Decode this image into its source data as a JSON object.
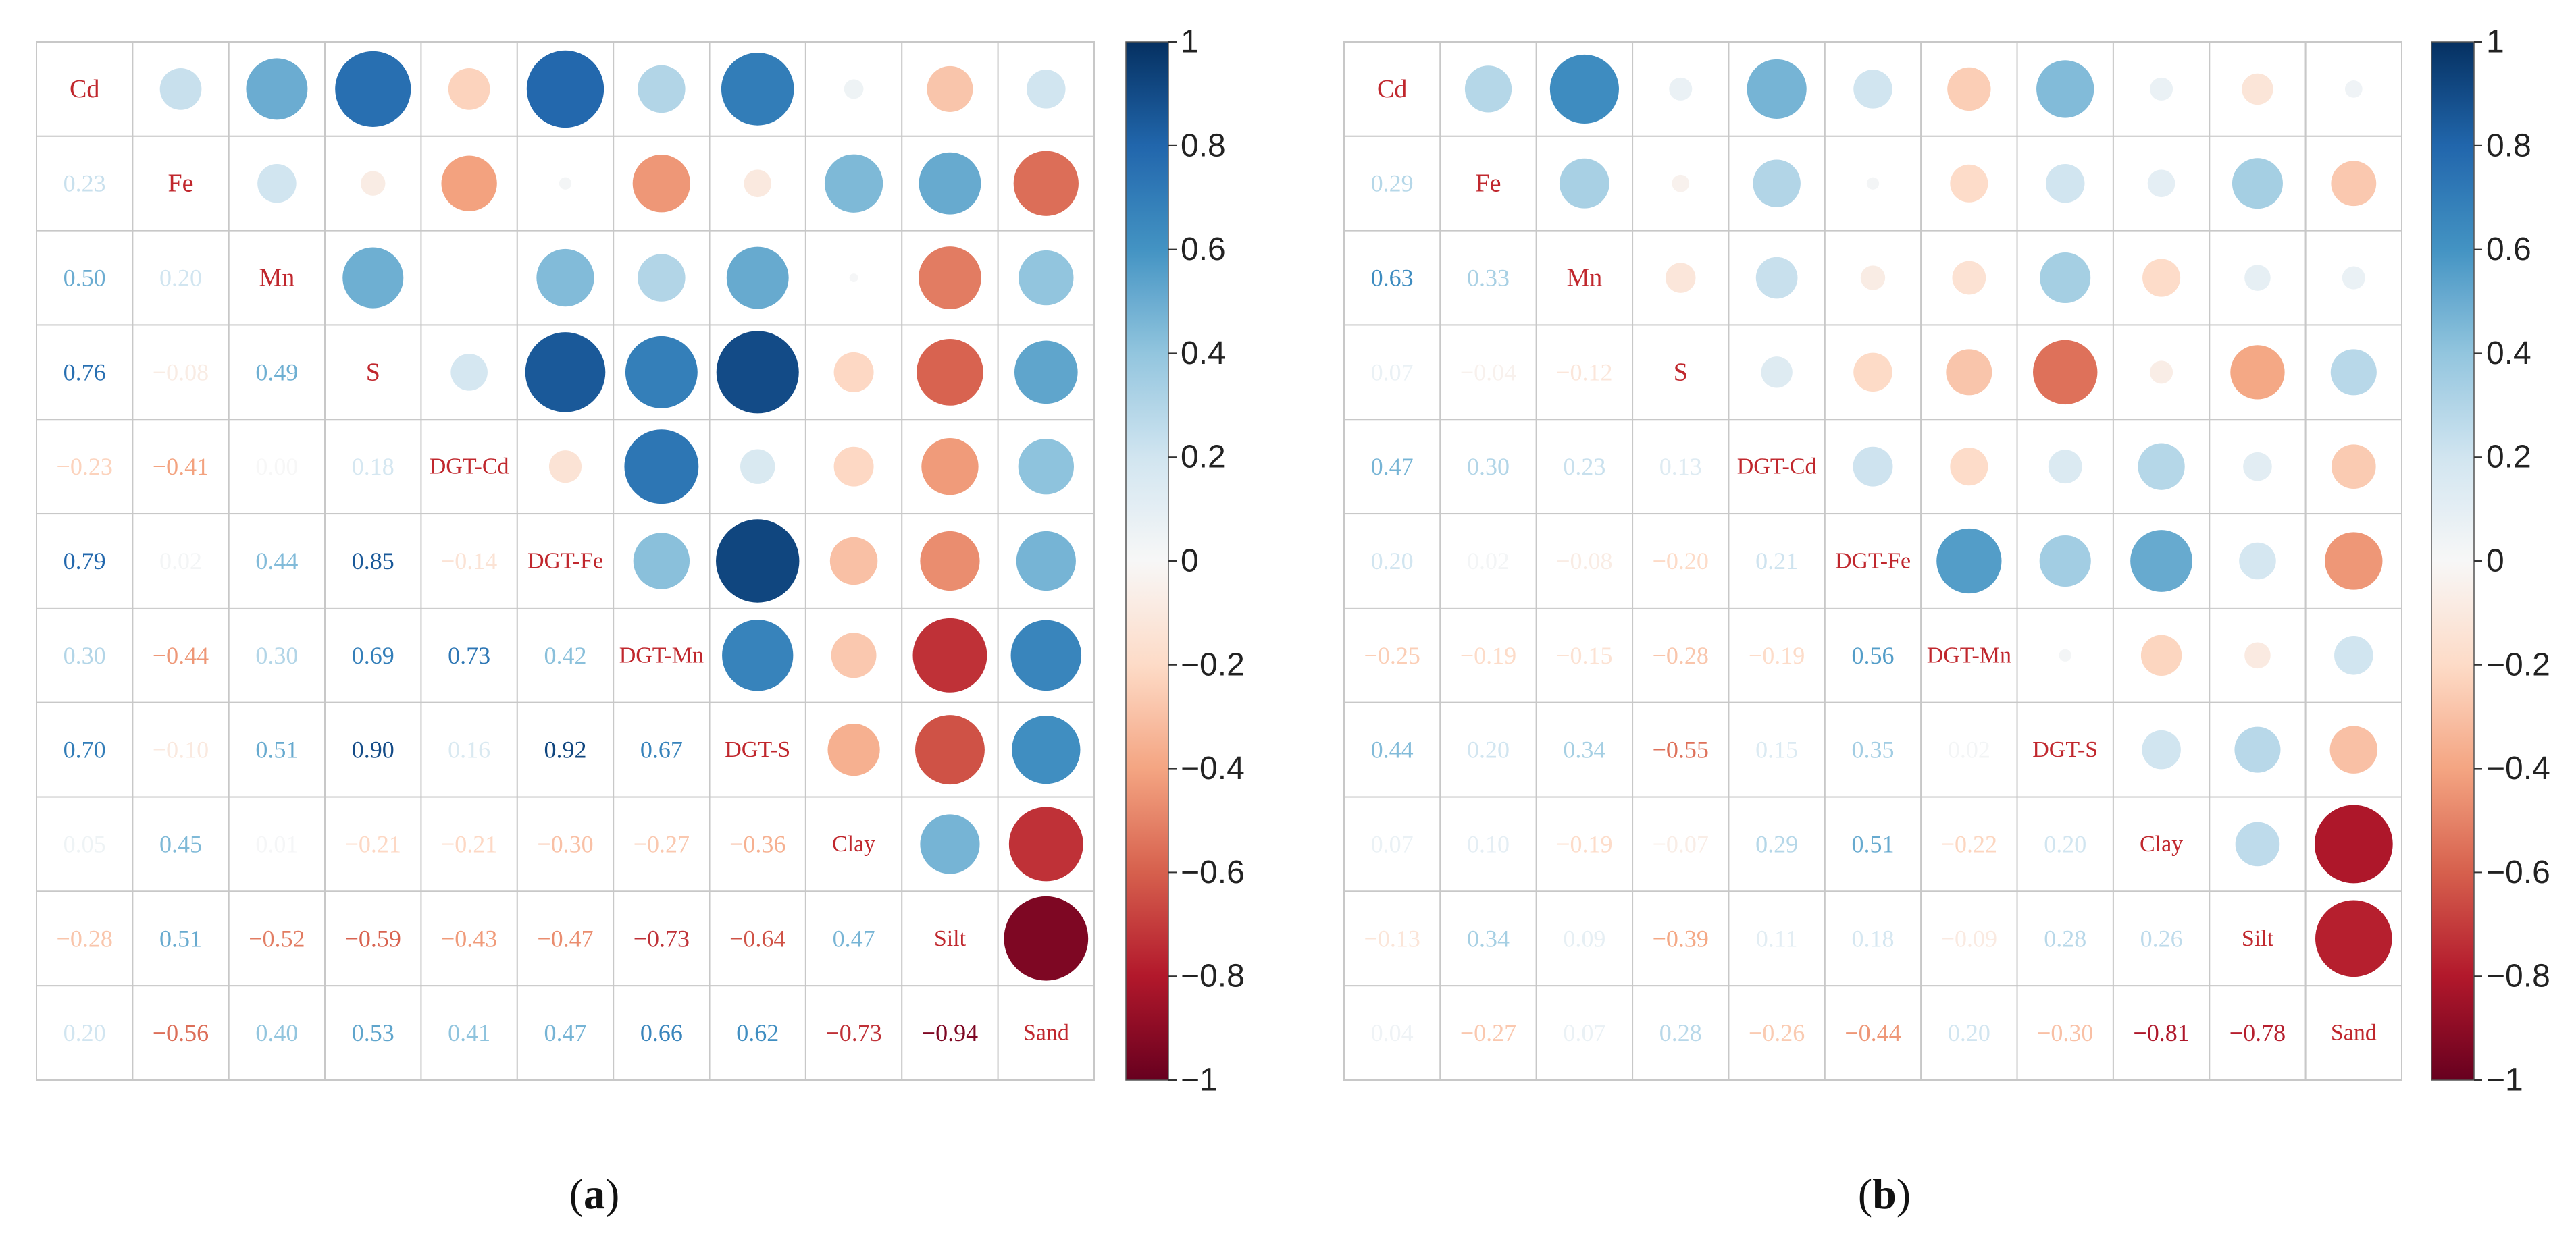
{
  "chart_data": [
    {
      "type": "heatmap",
      "subtype": "correlogram-circles-upper-numbers-lower",
      "panel_label": "(a)",
      "variables": [
        "Cd",
        "Fe",
        "Mn",
        "S",
        "DGT-Cd",
        "DGT-Fe",
        "DGT-Mn",
        "DGT-S",
        "Clay",
        "Silt",
        "Sand"
      ],
      "lower_labels": [
        [],
        [
          "0.23"
        ],
        [
          "0.50",
          "0.20"
        ],
        [
          "0.76",
          "−0.08",
          "0.49"
        ],
        [
          "−0.23",
          "−0.41",
          "0.00",
          "0.18"
        ],
        [
          "0.79",
          "0.02",
          "0.44",
          "0.85",
          "−0.14"
        ],
        [
          "0.30",
          "−0.44",
          "0.30",
          "0.69",
          "0.73",
          "0.42"
        ],
        [
          "0.70",
          "−0.10",
          "0.51",
          "0.90",
          "0.16",
          "0.92",
          "0.67"
        ],
        [
          "0.05",
          "0.45",
          "0.01",
          "−0.21",
          "−0.21",
          "−0.30",
          "−0.27",
          "−0.36"
        ],
        [
          "−0.28",
          "0.51",
          "−0.52",
          "−0.59",
          "−0.43",
          "−0.47",
          "−0.73",
          "−0.64",
          "0.47"
        ],
        [
          "0.20",
          "−0.56",
          "0.40",
          "0.53",
          "0.41",
          "0.47",
          "0.66",
          "0.62",
          "−0.73",
          "−0.94"
        ]
      ],
      "matrix": [
        [
          1,
          0.23,
          0.5,
          0.76,
          -0.23,
          0.79,
          0.3,
          0.7,
          0.05,
          -0.28,
          0.2
        ],
        [
          0.23,
          1,
          0.2,
          -0.08,
          -0.41,
          0.02,
          -0.44,
          -0.1,
          0.45,
          0.51,
          -0.56
        ],
        [
          0.5,
          0.2,
          1,
          0.49,
          0.0,
          0.44,
          0.3,
          0.51,
          0.01,
          -0.52,
          0.4
        ],
        [
          0.76,
          -0.08,
          0.49,
          1,
          0.18,
          0.85,
          0.69,
          0.9,
          -0.21,
          -0.59,
          0.53
        ],
        [
          -0.23,
          -0.41,
          0.0,
          0.18,
          1,
          -0.14,
          0.73,
          0.16,
          -0.21,
          -0.43,
          0.41
        ],
        [
          0.79,
          0.02,
          0.44,
          0.85,
          -0.14,
          1,
          0.42,
          0.92,
          -0.3,
          -0.47,
          0.47
        ],
        [
          0.3,
          -0.44,
          0.3,
          0.69,
          0.73,
          0.42,
          1,
          0.67,
          -0.27,
          -0.73,
          0.66
        ],
        [
          0.7,
          -0.1,
          0.51,
          0.9,
          0.16,
          0.92,
          0.67,
          1,
          -0.36,
          -0.64,
          0.62
        ],
        [
          0.05,
          0.45,
          0.01,
          -0.21,
          -0.21,
          -0.3,
          -0.27,
          -0.36,
          1,
          0.47,
          -0.73
        ],
        [
          -0.28,
          0.51,
          -0.52,
          -0.59,
          -0.43,
          -0.47,
          -0.73,
          -0.64,
          0.47,
          1,
          -0.94
        ],
        [
          0.2,
          -0.56,
          0.4,
          0.53,
          0.41,
          0.47,
          0.66,
          0.62,
          -0.73,
          -0.94,
          1
        ]
      ],
      "colorbar": {
        "min": -1,
        "max": 1,
        "tick_labels": [
          "1",
          "0.8",
          "0.6",
          "0.4",
          "0.2",
          "0",
          "−0.2",
          "−0.4",
          "−0.6",
          "−0.8",
          "−1"
        ]
      }
    },
    {
      "type": "heatmap",
      "subtype": "correlogram-circles-upper-numbers-lower",
      "panel_label": "(b)",
      "variables": [
        "Cd",
        "Fe",
        "Mn",
        "S",
        "DGT-Cd",
        "DGT-Fe",
        "DGT-Mn",
        "DGT-S",
        "Clay",
        "Silt",
        "Sand"
      ],
      "lower_labels": [
        [],
        [
          "0.29"
        ],
        [
          "0.63",
          "0.33"
        ],
        [
          "0.07",
          "−0.04",
          "−0.12"
        ],
        [
          "0.47",
          "0.30",
          "0.23",
          "0.13"
        ],
        [
          "0.20",
          "0.02",
          "−0.08",
          "−0.20",
          "0.21"
        ],
        [
          "−0.25",
          "−0.19",
          "−0.15",
          "−0.28",
          "−0.19",
          "0.56"
        ],
        [
          "0.44",
          "0.20",
          "0.34",
          "−0.55",
          "0.15",
          "0.35",
          "0.02"
        ],
        [
          "0.07",
          "0.10",
          "−0.19",
          "−0.07",
          "0.29",
          "0.51",
          "−0.22",
          "0.20"
        ],
        [
          "−0.13",
          "0.34",
          "0.09",
          "−0.39",
          "0.11",
          "0.18",
          "−0.09",
          "0.28",
          "0.26"
        ],
        [
          "0.04",
          "−0.27",
          "0.07",
          "0.28",
          "−0.26",
          "−0.44",
          "0.20",
          "−0.30",
          "−0.81",
          "−0.78"
        ]
      ],
      "matrix": [
        [
          1,
          0.29,
          0.63,
          0.07,
          0.47,
          0.2,
          -0.25,
          0.44,
          0.07,
          -0.13,
          0.04
        ],
        [
          0.29,
          1,
          0.33,
          -0.04,
          0.3,
          0.02,
          -0.19,
          0.2,
          0.1,
          0.34,
          -0.27
        ],
        [
          0.63,
          0.33,
          1,
          -0.12,
          0.23,
          -0.08,
          -0.15,
          0.34,
          -0.19,
          0.09,
          0.07
        ],
        [
          0.07,
          -0.04,
          -0.12,
          1,
          0.13,
          -0.2,
          -0.28,
          -0.55,
          -0.07,
          -0.39,
          0.28
        ],
        [
          0.47,
          0.3,
          0.23,
          0.13,
          1,
          0.21,
          -0.19,
          0.15,
          0.29,
          0.11,
          -0.26
        ],
        [
          0.2,
          0.02,
          -0.08,
          -0.2,
          0.21,
          1,
          0.56,
          0.35,
          0.51,
          0.18,
          -0.44
        ],
        [
          -0.25,
          -0.19,
          -0.15,
          -0.28,
          -0.19,
          0.56,
          1,
          0.02,
          -0.22,
          -0.09,
          0.2
        ],
        [
          0.44,
          0.2,
          0.34,
          -0.55,
          0.15,
          0.35,
          0.02,
          1,
          0.2,
          0.28,
          -0.3
        ],
        [
          0.07,
          0.1,
          -0.19,
          -0.07,
          0.29,
          0.51,
          -0.22,
          0.2,
          1,
          0.26,
          -0.81
        ],
        [
          -0.13,
          0.34,
          0.09,
          -0.39,
          0.11,
          0.18,
          -0.09,
          0.28,
          0.26,
          1,
          -0.78
        ],
        [
          0.04,
          -0.27,
          0.07,
          0.28,
          -0.26,
          -0.44,
          0.2,
          -0.3,
          -0.81,
          -0.78,
          1
        ]
      ],
      "colorbar": {
        "min": -1,
        "max": 1,
        "tick_labels": [
          "1",
          "0.8",
          "0.6",
          "0.4",
          "0.2",
          "0",
          "−0.2",
          "−0.4",
          "−0.6",
          "−0.8",
          "−1"
        ]
      }
    }
  ],
  "colors": {
    "diagonal_text": "#c0272d",
    "grid": "#c8c8c8",
    "colormap_stops": [
      "#67001f",
      "#b2182b",
      "#d6604d",
      "#f4a582",
      "#fddbc7",
      "#f7f7f7",
      "#d1e5f0",
      "#92c5de",
      "#4393c3",
      "#2166ac",
      "#053061"
    ]
  }
}
